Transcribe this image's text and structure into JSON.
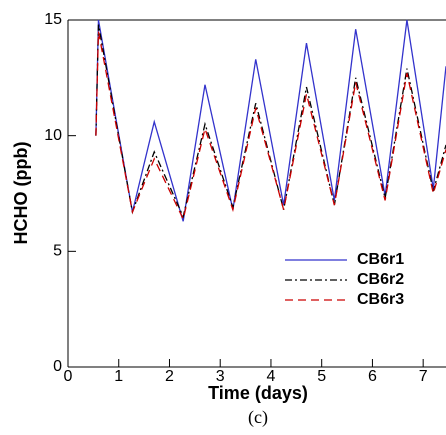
{
  "chart_data": {
    "type": "line",
    "caption": "(c)",
    "x_label": "Time (days)",
    "y_label": "HCHO (ppb)",
    "x": [
      0.55,
      0.6,
      1.27,
      1.7,
      2.27,
      2.7,
      3.25,
      3.7,
      4.25,
      4.7,
      5.25,
      5.67,
      6.25,
      6.68,
      7.2,
      7.45
    ],
    "series": [
      {
        "name": "CB6r1",
        "color": "#3333cc",
        "linestyle": "solid",
        "values": [
          10,
          15,
          6.7,
          10.6,
          6.3,
          12.2,
          6.8,
          13.3,
          7.0,
          14.0,
          7.2,
          14.6,
          7.4,
          15.0,
          7.7,
          13.0
        ]
      },
      {
        "name": "CB6r2",
        "color": "#000000",
        "linestyle": "dashdot",
        "values": [
          10,
          14.8,
          6.7,
          9.3,
          6.5,
          10.5,
          6.9,
          11.4,
          6.8,
          12.1,
          7.0,
          12.5,
          7.3,
          12.9,
          7.6,
          9.6
        ]
      },
      {
        "name": "CB6r3",
        "color": "#cc0000",
        "linestyle": "dashed",
        "values": [
          10,
          14.5,
          6.7,
          9.0,
          6.4,
          10.3,
          6.8,
          11.2,
          6.8,
          11.8,
          7.0,
          12.3,
          7.2,
          12.7,
          7.5,
          9.4
        ]
      }
    ],
    "xlim": [
      0,
      7.45
    ],
    "ylim": [
      0,
      15
    ],
    "xticks": [
      0,
      1,
      2,
      3,
      4,
      5,
      6,
      7
    ],
    "yticks": [
      0,
      5,
      10,
      15
    ],
    "legend": "lower right"
  }
}
